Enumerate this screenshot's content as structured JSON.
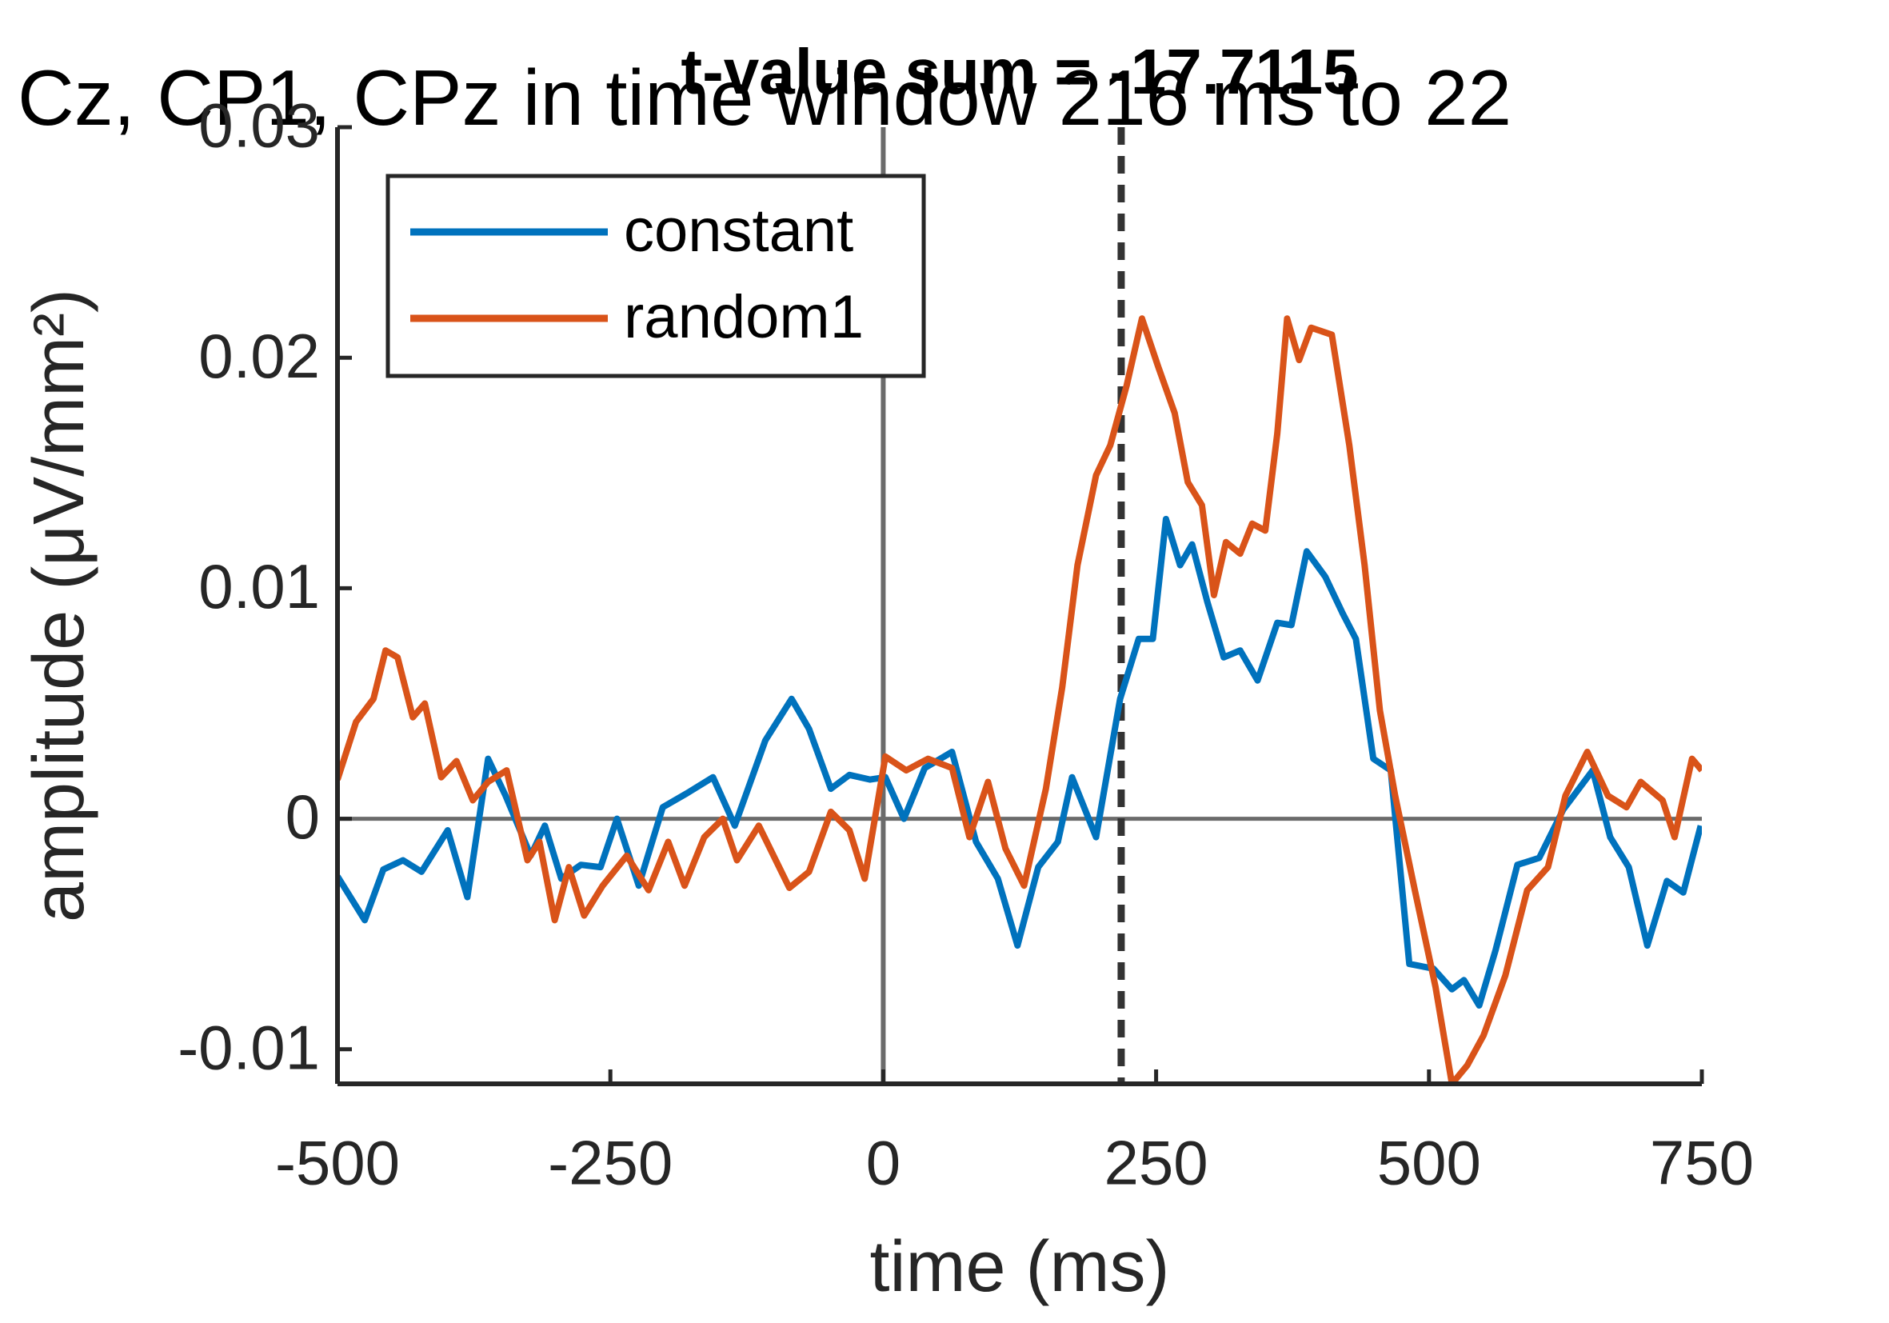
{
  "chart_data": {
    "type": "line",
    "title": "t-value sum = -17.7115",
    "subtitle": "Cz, CP1, CPz in time window 216 ms to 22",
    "xlabel": "time (ms)",
    "ylabel": "amplitude (μV/mm²)",
    "xlim": [
      -500,
      750
    ],
    "ylim": [
      -0.0115,
      0.03
    ],
    "xticks": [
      -500,
      -250,
      0,
      250,
      500,
      750
    ],
    "yticks": [
      -0.01,
      0,
      0.01,
      0.02,
      0.03
    ],
    "grid": false,
    "legend": "top-left",
    "vlines": [
      {
        "value": 0,
        "style": "solid"
      },
      {
        "value": 218,
        "style": "dashed"
      }
    ],
    "hlines": [
      {
        "value": 0,
        "style": "solid"
      }
    ],
    "series": [
      {
        "name": "constant",
        "color": "#0072bd",
        "x": [
          -500,
          -475,
          -458,
          -440,
          -423,
          -399,
          -381,
          -362,
          -346,
          -323,
          -310,
          -295,
          -277,
          -259,
          -244,
          -224,
          -202,
          -180,
          -156,
          -136,
          -108,
          -84,
          -68,
          -48,
          -31,
          -12,
          2,
          19,
          38,
          63,
          85,
          105,
          123,
          142,
          160,
          173,
          195,
          217,
          234,
          247,
          259,
          272,
          283,
          297,
          312,
          327,
          343,
          361,
          374,
          388,
          405,
          421,
          433,
          449,
          465,
          482,
          504,
          521,
          532,
          546,
          561,
          581,
          601,
          623,
          650,
          666,
          683,
          700,
          718,
          733,
          749
        ],
        "values": [
          -0.0025,
          -0.0044,
          -0.0022,
          -0.0018,
          -0.0023,
          -0.0005,
          -0.0034,
          0.0026,
          0.001,
          -0.0016,
          -0.0003,
          -0.0026,
          -0.002,
          -0.0021,
          0,
          -0.0029,
          0.0005,
          0.0011,
          0.0018,
          -0.0003,
          0.0034,
          0.0052,
          0.0039,
          0.0013,
          0.0019,
          0.0017,
          0.0018,
          0,
          0.0022,
          0.0029,
          -0.001,
          -0.0026,
          -0.0055,
          -0.0021,
          -0.001,
          0.0018,
          -0.0008,
          0.0052,
          0.0078,
          0.0078,
          0.013,
          0.011,
          0.0119,
          0.0094,
          0.007,
          0.0073,
          0.006,
          0.0085,
          0.0084,
          0.0116,
          0.0105,
          0.0089,
          0.0078,
          0.0026,
          0.0021,
          -0.0063,
          -0.0065,
          -0.0074,
          -0.007,
          -0.0081,
          -0.0057,
          -0.002,
          -0.0017,
          0.0004,
          0.0021,
          -0.0008,
          -0.0021,
          -0.0055,
          -0.0027,
          -0.0032,
          -0.0003
        ]
      },
      {
        "name": "random1",
        "color": "#d95319",
        "x": [
          -500,
          -483,
          -467,
          -456,
          -445,
          -431,
          -420,
          -405,
          -391,
          -376,
          -362,
          -345,
          -326,
          -315,
          -301,
          -288,
          -274,
          -257,
          -235,
          -215,
          -197,
          -182,
          -164,
          -147,
          -134,
          -114,
          -86,
          -68,
          -48,
          -31,
          -17,
          2,
          21,
          41,
          63,
          79,
          96,
          112,
          129,
          149,
          164,
          178,
          195,
          208,
          223,
          237,
          252,
          267,
          279,
          292,
          303,
          314,
          327,
          338,
          350,
          361,
          370,
          381,
          392,
          411,
          427,
          441,
          455,
          469,
          487,
          506,
          521,
          535,
          550,
          570,
          590,
          609,
          625,
          645,
          664,
          681,
          694,
          714,
          725,
          741,
          750
        ],
        "values": [
          0.0017,
          0.0042,
          0.0052,
          0.0073,
          0.007,
          0.0044,
          0.005,
          0.0018,
          0.0025,
          0.0008,
          0.0016,
          0.0021,
          -0.0018,
          -0.001,
          -0.0044,
          -0.0021,
          -0.0042,
          -0.0029,
          -0.0016,
          -0.0031,
          -0.001,
          -0.0029,
          -0.0008,
          0,
          -0.0018,
          -0.0003,
          -0.003,
          -0.0023,
          0.0003,
          -0.0005,
          -0.0026,
          0.0027,
          0.0021,
          0.0026,
          0.0022,
          -0.0008,
          0.0016,
          -0.0013,
          -0.0029,
          0.0013,
          0.0057,
          0.011,
          0.0149,
          0.0162,
          0.0188,
          0.0217,
          0.0196,
          0.0176,
          0.0146,
          0.0136,
          0.0097,
          0.012,
          0.0115,
          0.0128,
          0.0125,
          0.0167,
          0.0217,
          0.0199,
          0.0213,
          0.021,
          0.0162,
          0.011,
          0.0047,
          0.001,
          -0.0031,
          -0.0073,
          -0.0115,
          -0.0107,
          -0.0094,
          -0.0068,
          -0.0031,
          -0.0021,
          0.001,
          0.0029,
          0.001,
          0.0005,
          0.0016,
          0.0008,
          -0.0008,
          0.0026,
          0.0021
        ]
      }
    ]
  }
}
